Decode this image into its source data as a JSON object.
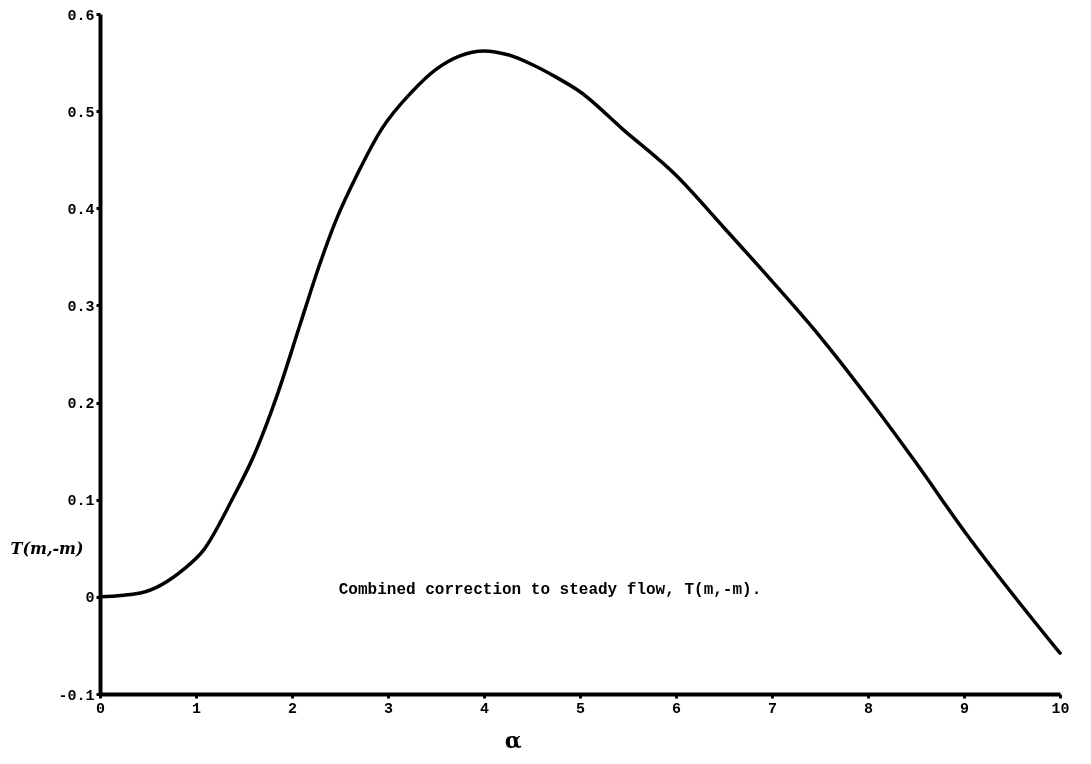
{
  "chart_data": {
    "type": "line",
    "xlabel": "α",
    "ylabel": "T(m,-m)",
    "annotations": [
      "Combined correction to steady flow, T(m,-m)."
    ],
    "x": [
      0,
      0.42,
      0.88,
      1.07,
      1.38,
      1.61,
      1.85,
      2.08,
      2.27,
      2.46,
      2.69,
      2.93,
      3.25,
      3.5,
      3.75,
      4,
      4.25,
      4.5,
      4.75,
      5,
      5.45,
      6,
      6.5,
      7,
      7.5,
      8,
      8.5,
      9,
      10
    ],
    "series": [
      {
        "color": "#000000",
        "values": [
          0,
          0.004,
          0.029,
          0.047,
          0.101,
          0.147,
          0.209,
          0.279,
          0.337,
          0.388,
          0.437,
          0.481,
          0.52,
          0.543,
          0.557,
          0.562,
          0.558,
          0.548,
          0.535,
          0.52,
          0.481,
          0.434,
          0.38,
          0.325,
          0.268,
          0.205,
          0.138,
          0.068,
          -0.058
        ]
      }
    ],
    "xlim": [
      0,
      10
    ],
    "xticks": [
      0,
      1,
      2,
      3,
      4,
      5,
      6,
      7,
      8,
      9,
      10
    ],
    "ylim": [
      -0.1,
      0.6
    ],
    "yticks": [
      -0.1,
      0,
      0.1,
      0.2,
      0.3,
      0.4,
      0.5,
      0.6
    ],
    "grid": false,
    "marker": "none",
    "line_style": "solid"
  }
}
